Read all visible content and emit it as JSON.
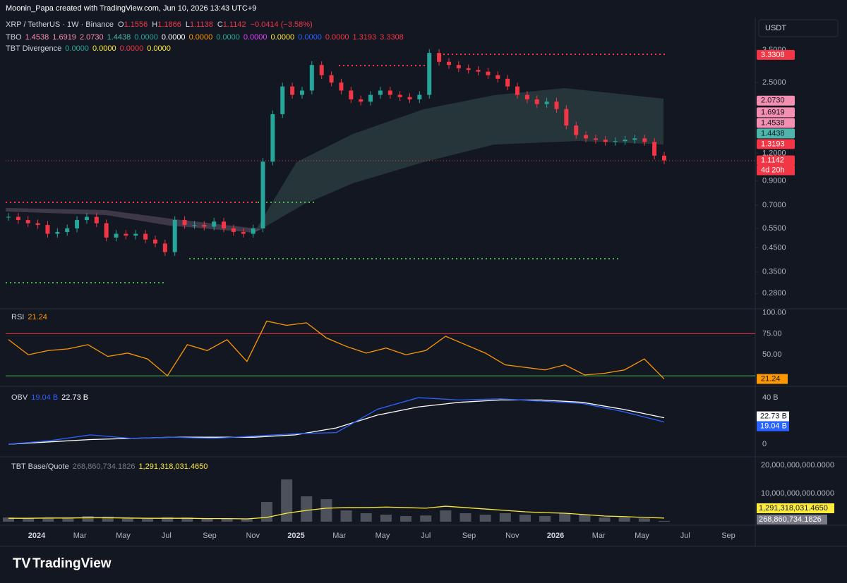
{
  "header": {
    "credit": "Moonin_Papa created with TradingView.com, Jun 10, 2026 13:43 UTC+9",
    "symbol": "XRP / TetherUS · 1W · Binance",
    "ohlc": [
      {
        "key": "O",
        "value": "1.1556"
      },
      {
        "key": "H",
        "value": "1.1866"
      },
      {
        "key": "L",
        "value": "1.1138"
      },
      {
        "key": "C",
        "value": "1.1142"
      }
    ],
    "change": "−0.0414 (−3.58%)"
  },
  "tbo": {
    "name": "TBO",
    "values": [
      {
        "text": "1.4538",
        "color": "#f48fb1"
      },
      {
        "text": "1.6919",
        "color": "#f48fb1"
      },
      {
        "text": "2.0730",
        "color": "#f48fb1"
      },
      {
        "text": "1.4438",
        "color": "#4db6ac"
      },
      {
        "text": "0.0000",
        "color": "#26a69a"
      },
      {
        "text": "0.0000",
        "color": "#ffffff"
      },
      {
        "text": "0.0000",
        "color": "#ff9800"
      },
      {
        "text": "0.0000",
        "color": "#26a69a"
      },
      {
        "text": "0.0000",
        "color": "#e040fb"
      },
      {
        "text": "0.0000",
        "color": "#ffeb3b"
      },
      {
        "text": "0.0000",
        "color": "#2962ff"
      },
      {
        "text": "0.0000",
        "color": "#f23645"
      },
      {
        "text": "1.3193",
        "color": "#f23645"
      },
      {
        "text": "3.3308",
        "color": "#f23645"
      }
    ]
  },
  "tbt_divergence": {
    "name": "TBT Divergence",
    "values": [
      {
        "text": "0.0000",
        "color": "#26a69a"
      },
      {
        "text": "0.0000",
        "color": "#ffeb3b"
      },
      {
        "text": "0.0000",
        "color": "#f23645"
      },
      {
        "text": "0.0000",
        "color": "#ffeb3b"
      }
    ]
  },
  "currency": "USDT",
  "price": {
    "scale": "log",
    "ylim": [
      0.244,
      4.73
    ],
    "yticks": [
      {
        "value": 0.28,
        "label": "0.2800"
      },
      {
        "value": 0.35,
        "label": "0.3500"
      },
      {
        "value": 0.45,
        "label": "0.4500"
      },
      {
        "value": 0.55,
        "label": "0.5500"
      },
      {
        "value": 0.7,
        "label": "0.7000"
      },
      {
        "value": 0.9,
        "label": "0.9000"
      },
      {
        "value": 1.2,
        "label": "1.2000"
      },
      {
        "value": 2.5,
        "label": "2.5000"
      },
      {
        "value": 3.5,
        "label": "3.5000"
      }
    ],
    "closes": [
      0.62,
      0.6,
      0.58,
      0.57,
      0.52,
      0.53,
      0.55,
      0.6,
      0.62,
      0.58,
      0.5,
      0.52,
      0.51,
      0.52,
      0.49,
      0.47,
      0.43,
      0.6,
      0.57,
      0.57,
      0.56,
      0.59,
      0.55,
      0.53,
      0.52,
      0.55,
      1.1,
      1.8,
      2.4,
      2.2,
      2.3,
      3.0,
      2.7,
      2.5,
      2.3,
      2.1,
      2.05,
      2.2,
      2.3,
      2.2,
      2.15,
      2.1,
      2.2,
      3.4,
      3.1,
      3.0,
      2.9,
      2.85,
      2.8,
      2.7,
      2.6,
      2.4,
      2.2,
      2.1,
      2.0,
      2.05,
      1.9,
      1.6,
      1.45,
      1.4,
      1.38,
      1.35,
      1.36,
      1.38,
      1.4,
      1.35,
      1.17,
      1.1142
    ],
    "badges": [
      {
        "value": 3.3308,
        "label": "3.3308",
        "color": "#f23645"
      },
      {
        "value": 2.073,
        "label": "2.0730",
        "color": "#f48fb1"
      },
      {
        "value": 1.6919,
        "label": "1.6919",
        "color": "#f48fb1"
      },
      {
        "value": 1.4538,
        "label": "1.4538",
        "color": "#f48fb1"
      },
      {
        "value": 1.4438,
        "label": "1.4438",
        "color": "#4db6ac"
      },
      {
        "value": 1.3193,
        "label": "1.3193",
        "color": "#f23645"
      },
      {
        "value": 1.1142,
        "label": "1.1142",
        "color": "#f23645"
      }
    ],
    "countdown": "4d 20h"
  },
  "rsi": {
    "name": "RSI",
    "last": "21.24",
    "ylim": [
      15,
      103
    ],
    "yticks": [
      {
        "value": 100,
        "label": "100.00"
      },
      {
        "value": 75,
        "label": "75.00"
      },
      {
        "value": 50,
        "label": "50.00"
      }
    ],
    "upper_band": 75,
    "lower_band": 25,
    "values": [
      68,
      50,
      55,
      57,
      62,
      48,
      52,
      45,
      25,
      62,
      55,
      68,
      42,
      90,
      85,
      88,
      70,
      60,
      52,
      58,
      50,
      55,
      72,
      62,
      52,
      38,
      35,
      32,
      38,
      26,
      28,
      32,
      45,
      21.24
    ]
  },
  "obv": {
    "name": "OBV",
    "labels": [
      "19.04 B",
      "22.73 B"
    ],
    "ylim": [
      -6,
      45.5
    ],
    "yticks": [
      {
        "value": 40,
        "label": "40 B"
      },
      0
    ],
    "values": [
      0,
      3,
      8,
      5,
      6,
      5,
      7,
      9,
      10,
      30,
      40,
      38,
      39,
      37,
      35,
      28,
      19.04
    ],
    "ma": [
      0,
      2,
      4,
      5,
      6,
      6,
      6,
      8,
      14,
      25,
      32,
      36,
      38,
      38,
      36,
      30,
      22.73
    ]
  },
  "volume": {
    "name": "TBT Base/Quote",
    "labels": [
      "268,860,734.1826",
      "1,291,318,031.4650"
    ],
    "ylim": [
      0,
      20800000000
    ],
    "yticks": [
      {
        "value": 20000000000,
        "label": "20,000,000,000.0000"
      },
      {
        "value": 10000000000,
        "label": "10,000,000,000.0000"
      }
    ],
    "values": [
      1500000000,
      1200000000,
      1300000000,
      1400000000,
      2000000000,
      1800000000,
      1200000000,
      1000000000,
      1600000000,
      1500000000,
      1000000000,
      1200000000,
      900000000,
      7000000000,
      15000000000,
      9000000000,
      8000000000,
      4000000000,
      3000000000,
      2500000000,
      2000000000,
      2200000000,
      4000000000,
      3000000000,
      2500000000,
      3000000000,
      2500000000,
      2000000000,
      3000000000,
      2500000000,
      1500000000,
      1500000000,
      1200000000,
      268860734.1826
    ],
    "ma": [
      1200000000,
      1200000000,
      1300000000,
      1300000000,
      1400000000,
      1400000000,
      1300000000,
      1200000000,
      1200000000,
      1200000000,
      1100000000,
      1100000000,
      1000000000,
      1500000000,
      3000000000,
      4000000000,
      4800000000,
      5000000000,
      5000000000,
      5200000000,
      5000000000,
      4800000000,
      5500000000,
      5000000000,
      4500000000,
      4000000000,
      3500000000,
      3200000000,
      3000000000,
      2500000000,
      2000000000,
      1800000000,
      1500000000,
      1291318031.465
    ]
  },
  "xaxis": [
    "2024",
    "Mar",
    "May",
    "Jul",
    "Sep",
    "Nov",
    "2025",
    "Mar",
    "May",
    "Jul",
    "Sep",
    "Nov",
    "2026",
    "Mar",
    "May",
    "Jul",
    "Sep"
  ],
  "footer": "TradingView"
}
